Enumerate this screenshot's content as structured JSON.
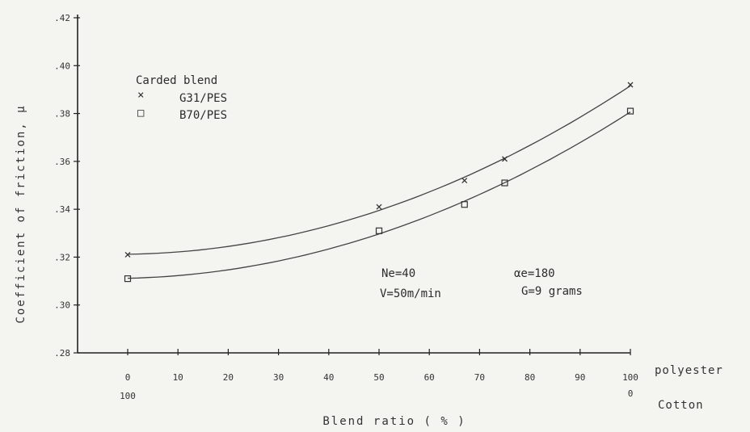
{
  "chart_data": {
    "type": "line",
    "xlabel": "Blend ratio ( % )",
    "ylabel": "Coefficient of friction, μ",
    "x_side_labels": {
      "top": "polyester",
      "bottom": "Cotton"
    },
    "x_ticks": [
      "0",
      "10",
      "20",
      "30",
      "40",
      "50",
      "60",
      "70",
      "80",
      "90",
      "100"
    ],
    "x_ticks_second": {
      "first": "100",
      "last": "0"
    },
    "y_ticks": [
      ".28",
      ".30",
      ".32",
      ".34",
      ".36",
      ".38",
      ".40",
      ".42"
    ],
    "xlim": [
      -10,
      100
    ],
    "ylim": [
      0.28,
      0.42
    ],
    "legend": {
      "title": "Carded blend",
      "entries": [
        {
          "marker": "×",
          "label": "G31/PES"
        },
        {
          "marker": "□",
          "label": "B70/PES"
        }
      ]
    },
    "series": [
      {
        "name": "G31/PES",
        "marker": "cross",
        "x": [
          0,
          50,
          67,
          75,
          100
        ],
        "y": [
          0.321,
          0.341,
          0.352,
          0.361,
          0.392
        ]
      },
      {
        "name": "B70/PES",
        "marker": "square",
        "x": [
          0,
          50,
          67,
          75,
          100
        ],
        "y": [
          0.311,
          0.331,
          0.342,
          0.351,
          0.381
        ]
      }
    ],
    "annotations": {
      "ne": "Ne=40",
      "v": "V=50m/min",
      "alpha": "αe=180",
      "g": "G=9 grams"
    }
  }
}
